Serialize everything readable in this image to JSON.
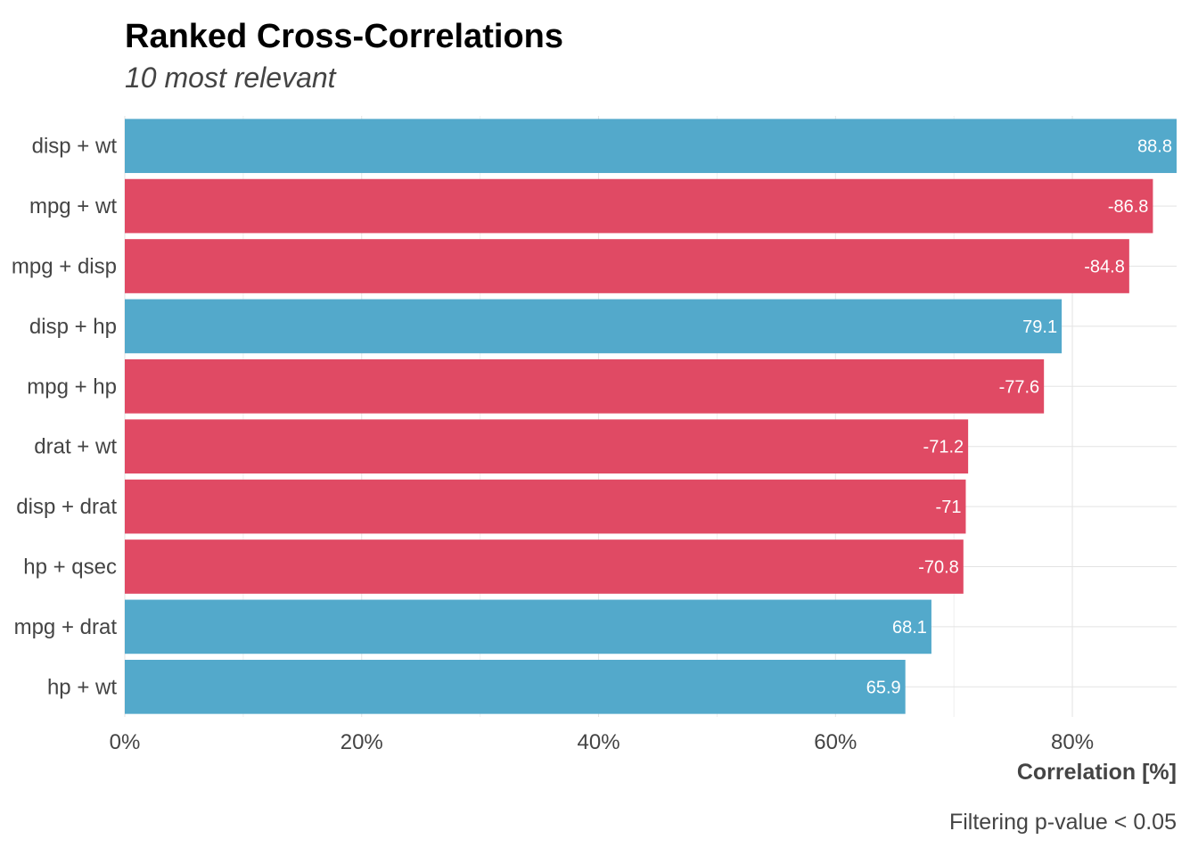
{
  "chart_data": {
    "type": "bar",
    "orientation": "horizontal",
    "title": "Ranked Cross-Correlations",
    "subtitle": "10 most relevant",
    "xlabel": "Correlation [%]",
    "caption": "Filtering p-value < 0.05",
    "xlim": [
      0,
      88.8
    ],
    "x_ticks": [
      0,
      20,
      40,
      60,
      80
    ],
    "x_tick_labels": [
      "0%",
      "20%",
      "40%",
      "60%",
      "80%"
    ],
    "categories": [
      "disp + wt",
      "mpg + wt",
      "mpg + disp",
      "disp + hp",
      "mpg + hp",
      "drat + wt",
      "disp + drat",
      "hp + qsec",
      "mpg + drat",
      "hp + wt"
    ],
    "values": [
      88.8,
      -86.8,
      -84.8,
      79.1,
      -77.6,
      -71.2,
      -71,
      -70.8,
      68.1,
      65.9
    ],
    "value_labels": [
      "88.8",
      "-86.8",
      "-84.8",
      "79.1",
      "-77.6",
      "-71.2",
      "-71",
      "-70.8",
      "68.1",
      "65.9"
    ],
    "colors": {
      "positive": "#53a9cb",
      "negative": "#e04a64"
    },
    "grid": true
  }
}
